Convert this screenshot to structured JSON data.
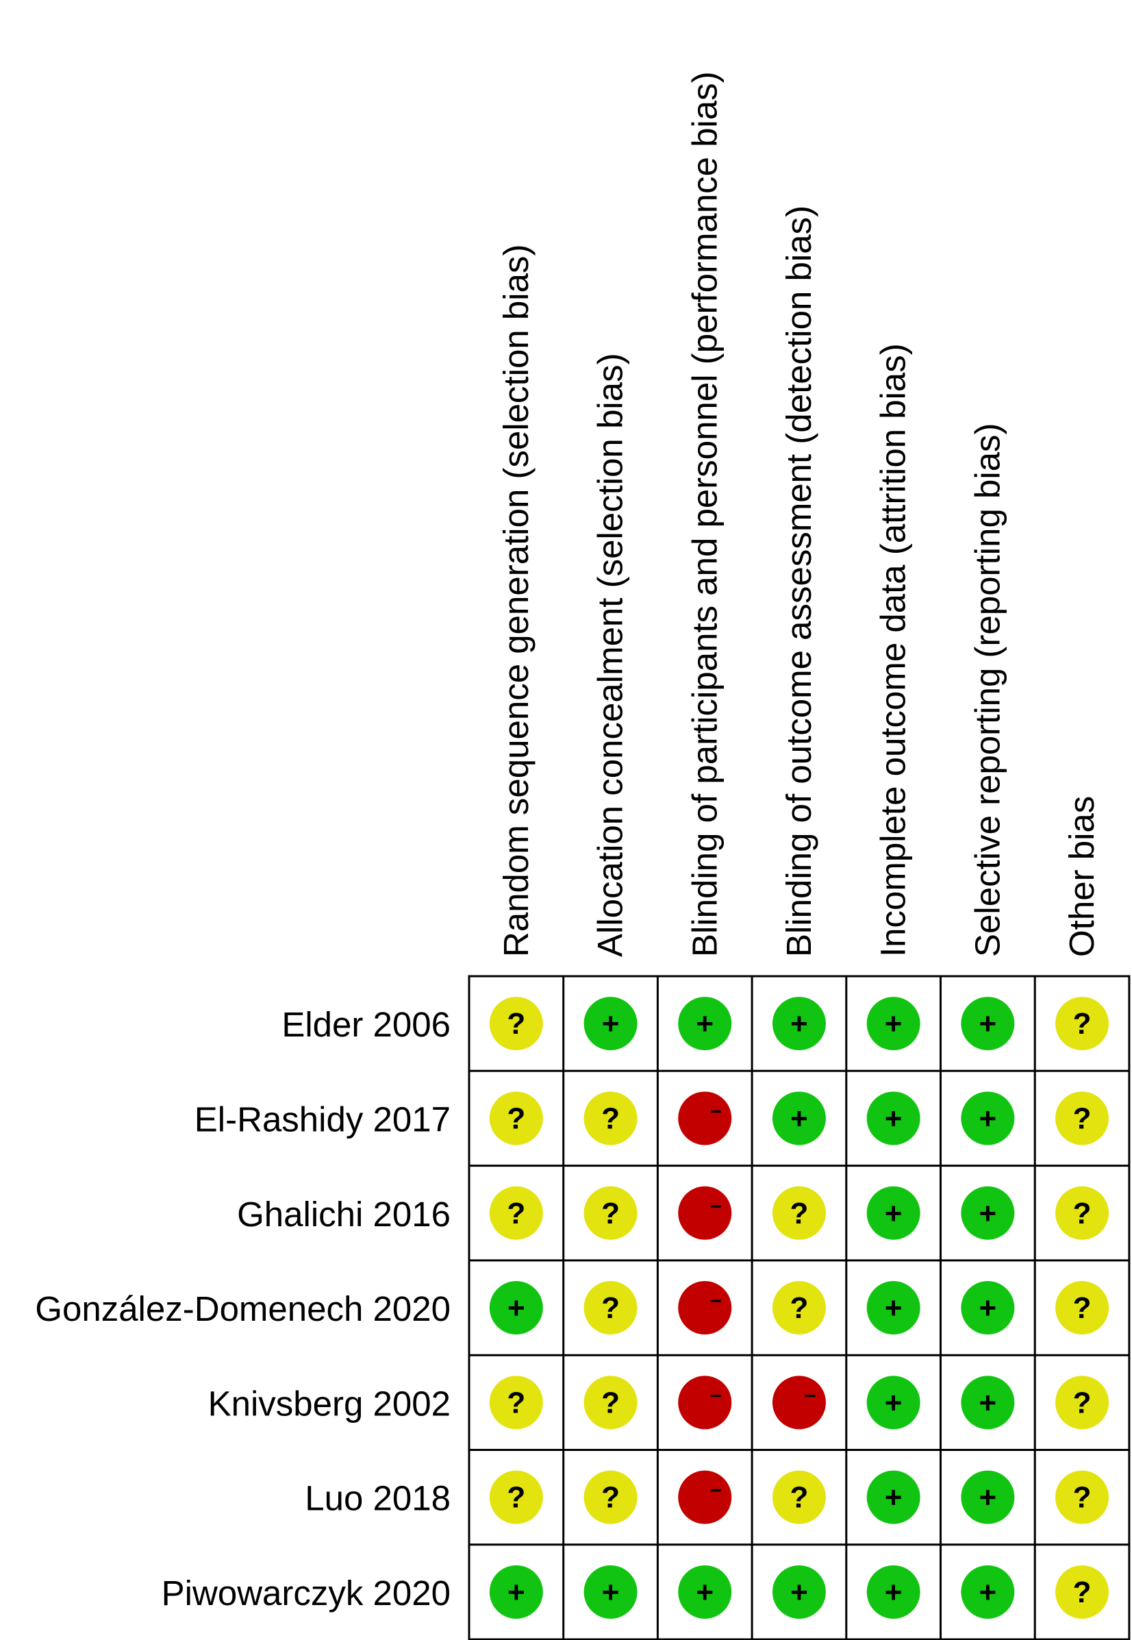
{
  "chart_data": {
    "type": "table",
    "columns": [
      "Random sequence generation (selection bias)",
      "Allocation concealment (selection bias)",
      "Blinding of participants and personnel (performance bias)",
      "Blinding of outcome assessment (detection bias)",
      "Incomplete outcome data (attrition bias)",
      "Selective reporting (reporting bias)",
      "Other bias"
    ],
    "studies": [
      "Elder 2006",
      "El-Rashidy 2017",
      "Ghalichi 2016",
      "González-Domenech 2020",
      "Knivsberg 2002",
      "Luo 2018",
      "Piwowarczyk 2020"
    ],
    "judgements": [
      [
        "?",
        "+",
        "+",
        "+",
        "+",
        "+",
        "?"
      ],
      [
        "?",
        "?",
        "-",
        "+",
        "+",
        "+",
        "?"
      ],
      [
        "?",
        "?",
        "-",
        "?",
        "+",
        "+",
        "?"
      ],
      [
        "+",
        "?",
        "-",
        "?",
        "+",
        "+",
        "?"
      ],
      [
        "?",
        "?",
        "-",
        "-",
        "+",
        "+",
        "?"
      ],
      [
        "?",
        "?",
        "-",
        "?",
        "+",
        "+",
        "?"
      ],
      [
        "+",
        "+",
        "+",
        "+",
        "+",
        "+",
        "?"
      ]
    ],
    "legend_colors": {
      "+": "#12c412",
      "?": "#e3e30f",
      "-": "#c20000"
    },
    "symbols": {
      "+": "+",
      "?": "?",
      "-": "−"
    }
  }
}
